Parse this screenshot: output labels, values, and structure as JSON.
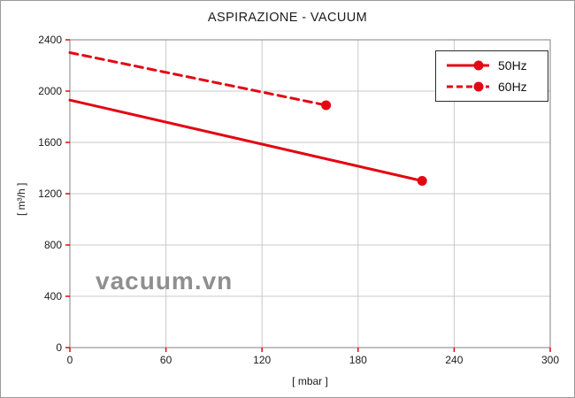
{
  "title": "ASPIRAZIONE - VACUUM",
  "watermark": "vacuum.vn",
  "colors": {
    "line": "#e30613",
    "grid": "#c9c9c9",
    "tick": "#e30613",
    "plot_border": "#808080",
    "watermark": "#8f8f8f"
  },
  "chart_data": {
    "type": "line",
    "title": "ASPIRAZIONE - VACUUM",
    "xlabel": "[ mbar ]",
    "ylabel": "[ m³/h ]",
    "xlim": [
      0,
      300
    ],
    "ylim": [
      0,
      2400
    ],
    "xticks": [
      0,
      60,
      120,
      180,
      240,
      300
    ],
    "yticks": [
      0,
      400,
      800,
      1200,
      1600,
      2000,
      2400
    ],
    "grid": true,
    "legend_position": "top-right",
    "series": [
      {
        "name": "50Hz",
        "style": "solid",
        "color": "#e30613",
        "points": [
          [
            0,
            1930
          ],
          [
            220,
            1300
          ]
        ],
        "endpoint_marker": true
      },
      {
        "name": "60Hz",
        "style": "dashed",
        "color": "#e30613",
        "points": [
          [
            0,
            2300
          ],
          [
            160,
            1890
          ]
        ],
        "endpoint_marker": true
      }
    ]
  }
}
